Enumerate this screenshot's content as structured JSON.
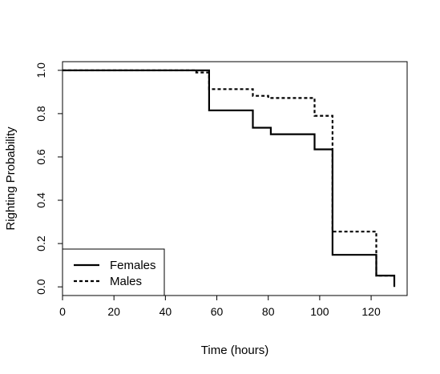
{
  "chart_data": {
    "type": "line",
    "step": true,
    "title": "",
    "xlabel": "Time (hours)",
    "ylabel": "Righting Probability",
    "xlim": [
      0,
      134
    ],
    "ylim": [
      -0.04,
      1.04
    ],
    "xticks": [
      0,
      20,
      40,
      60,
      80,
      100,
      120
    ],
    "yticks": [
      0.0,
      0.2,
      0.4,
      0.6,
      0.8,
      1.0
    ],
    "xtick_labels": [
      "0",
      "20",
      "40",
      "60",
      "80",
      "100",
      "120"
    ],
    "ytick_labels": [
      "0.0",
      "0.2",
      "0.4",
      "0.6",
      "0.8",
      "1.0"
    ],
    "grid": false,
    "legend_position": "bottom-left",
    "series": [
      {
        "name": "Females",
        "line_style": "solid",
        "color": "#000000",
        "x": [
          0,
          57,
          57,
          74,
          74,
          81,
          81,
          98,
          98,
          105,
          105,
          122,
          122,
          129,
          129
        ],
        "y": [
          1.0,
          1.0,
          0.815,
          0.815,
          0.735,
          0.735,
          0.705,
          0.705,
          0.635,
          0.635,
          0.148,
          0.148,
          0.052,
          0.052,
          0.0
        ]
      },
      {
        "name": "Males",
        "line_style": "dashed",
        "color": "#000000",
        "x": [
          0,
          52,
          52,
          57,
          57,
          74,
          74,
          80,
          80,
          98,
          98,
          105,
          105,
          122,
          122,
          129
        ],
        "y": [
          1.0,
          1.0,
          0.99,
          0.99,
          0.913,
          0.913,
          0.882,
          0.882,
          0.872,
          0.872,
          0.79,
          0.79,
          0.255,
          0.255,
          0.052,
          0.052
        ]
      }
    ]
  }
}
